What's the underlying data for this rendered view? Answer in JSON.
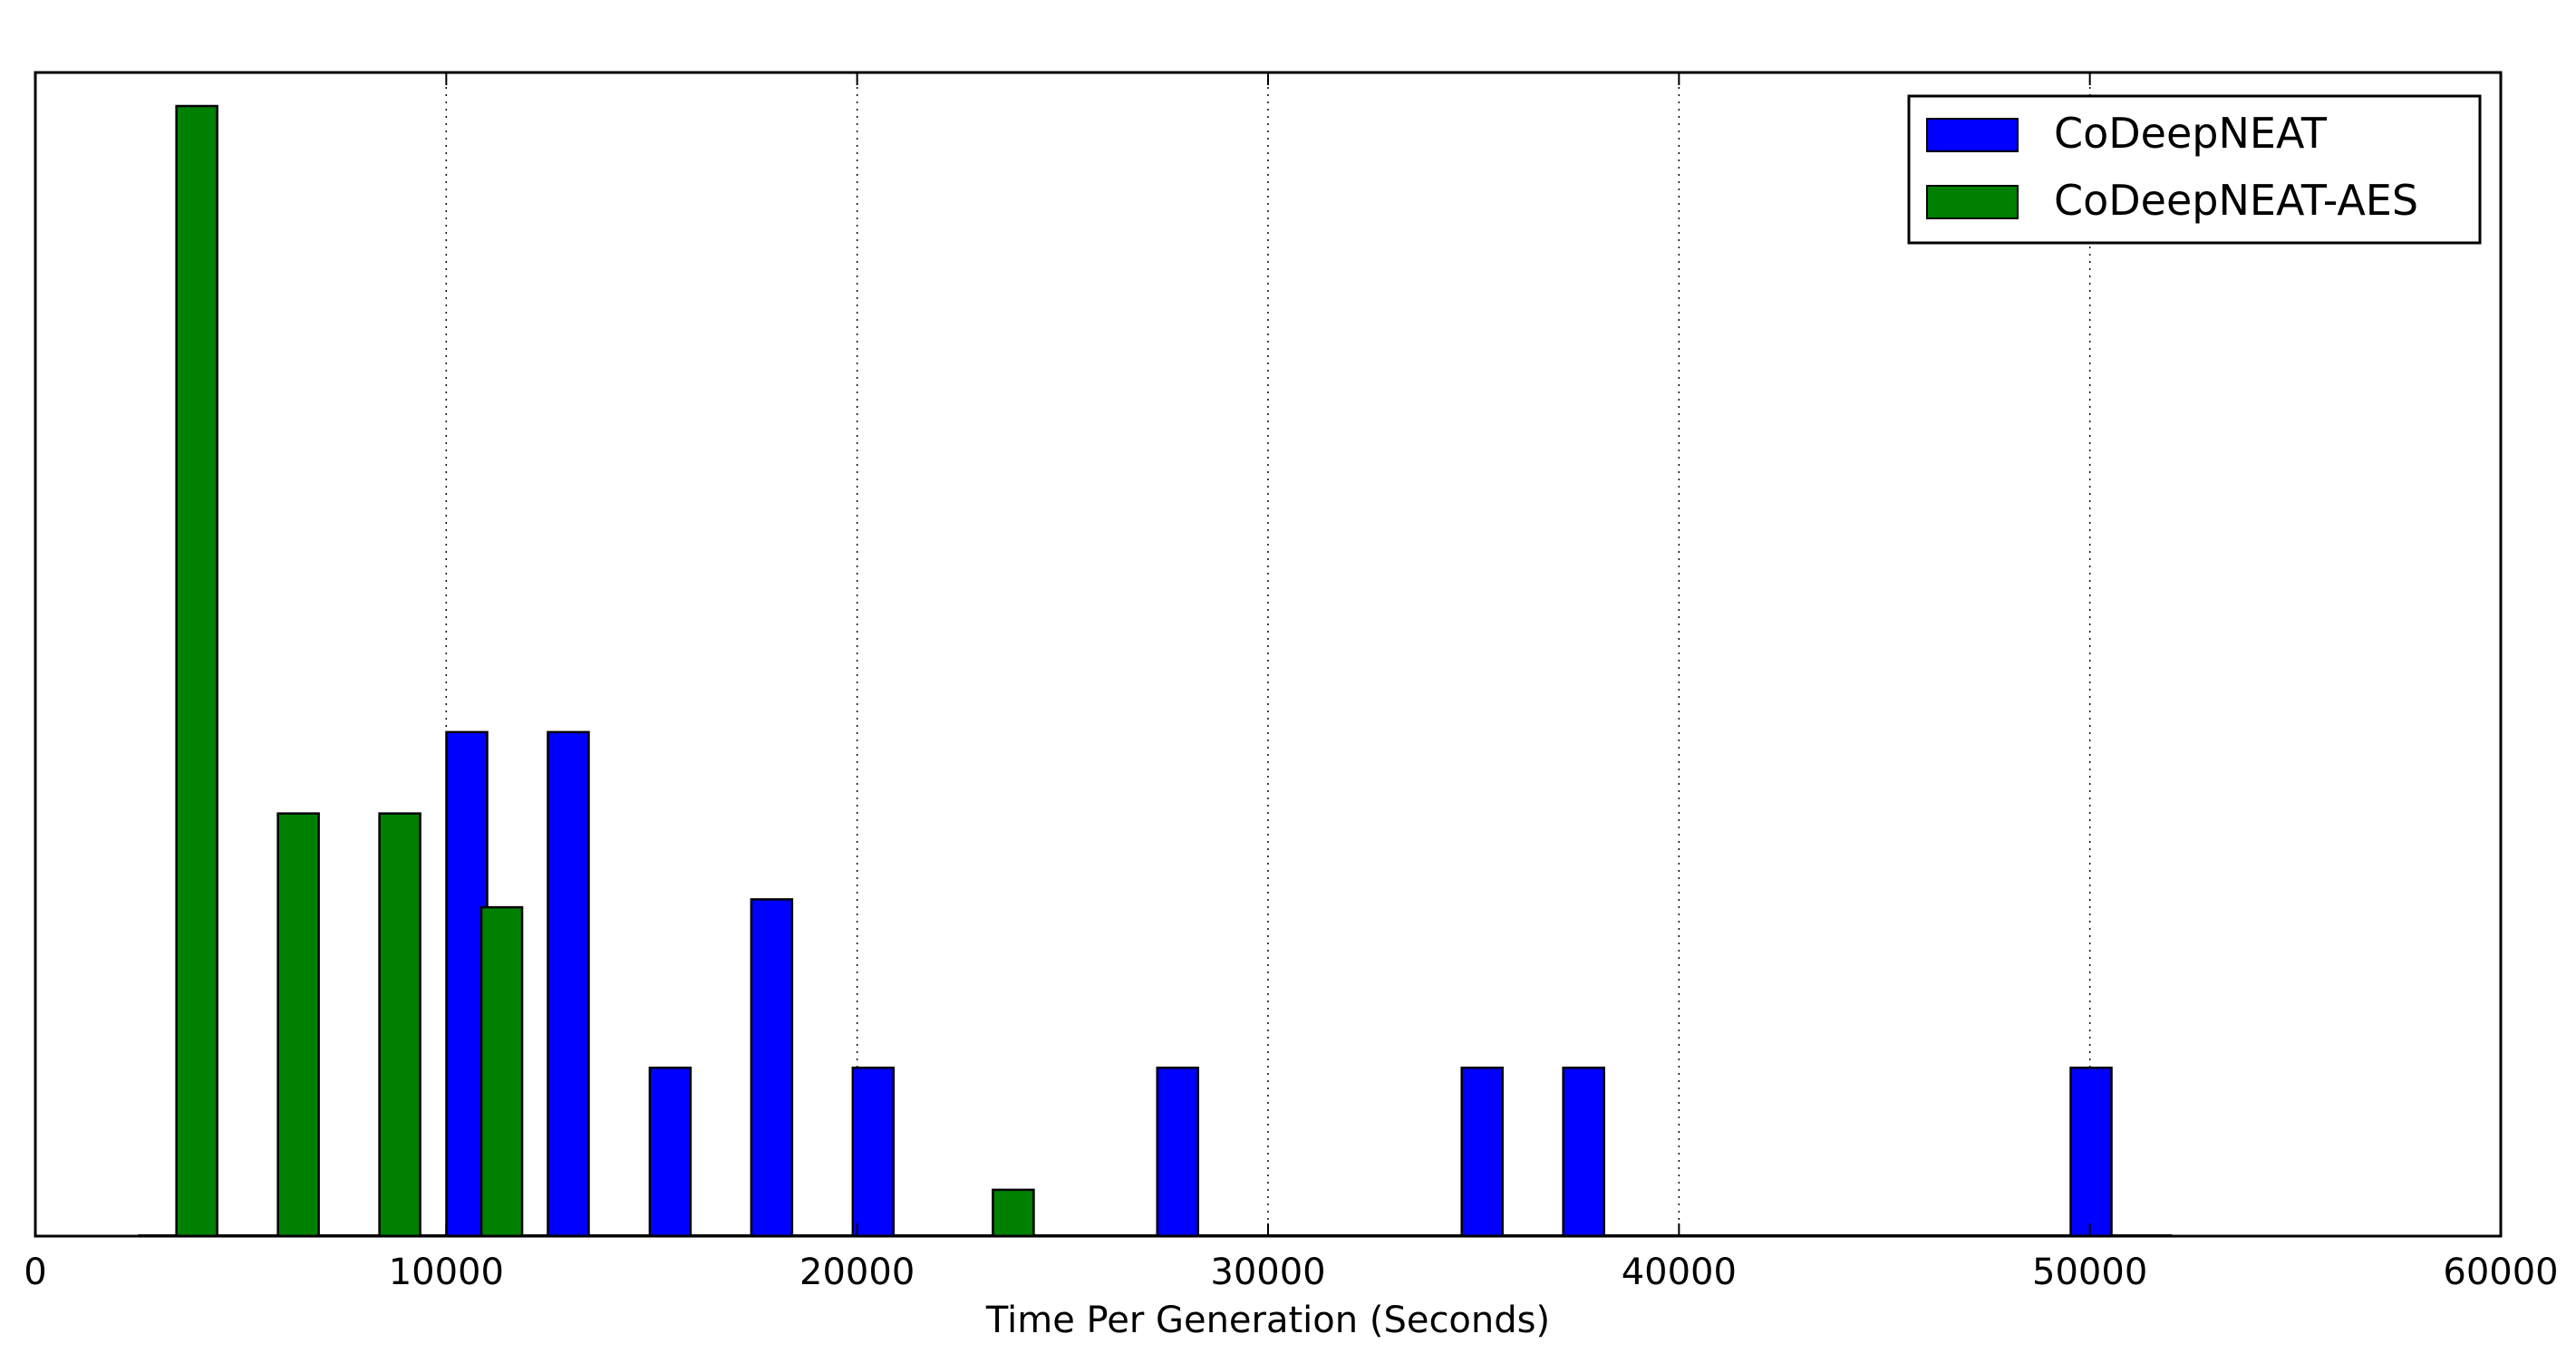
{
  "chart_data": {
    "type": "bar",
    "xlabel": "Time Per Generation (Seconds)",
    "xlim": [
      0,
      60000
    ],
    "xticks": [
      0,
      10000,
      20000,
      30000,
      40000,
      50000,
      60000
    ],
    "x_tick_labels": [
      "0",
      "10000",
      "20000",
      "30000",
      "40000",
      "50000",
      "60000"
    ],
    "ylim": [
      0,
      1
    ],
    "grid": "x-dotted",
    "legend_placement": "top-right",
    "series": [
      {
        "name": "CoDeepNEAT",
        "color": "#0000ff",
        "bins": [
          {
            "x": 10500,
            "value": 0.446
          },
          {
            "x": 12970,
            "value": 0.446
          },
          {
            "x": 15450,
            "value": 0.149
          },
          {
            "x": 17920,
            "value": 0.298
          },
          {
            "x": 20390,
            "value": 0.149
          },
          {
            "x": 27800,
            "value": 0.149
          },
          {
            "x": 35210,
            "value": 0.149
          },
          {
            "x": 37680,
            "value": 0.149
          },
          {
            "x": 50030,
            "value": 0.149
          }
        ]
      },
      {
        "name": "CoDeepNEAT-AES",
        "color": "#008000",
        "bins": [
          {
            "x": 3930,
            "value": 1.0
          },
          {
            "x": 6400,
            "value": 0.374
          },
          {
            "x": 8870,
            "value": 0.374
          },
          {
            "x": 11350,
            "value": 0.291
          },
          {
            "x": 23800,
            "value": 0.041
          }
        ]
      }
    ]
  }
}
